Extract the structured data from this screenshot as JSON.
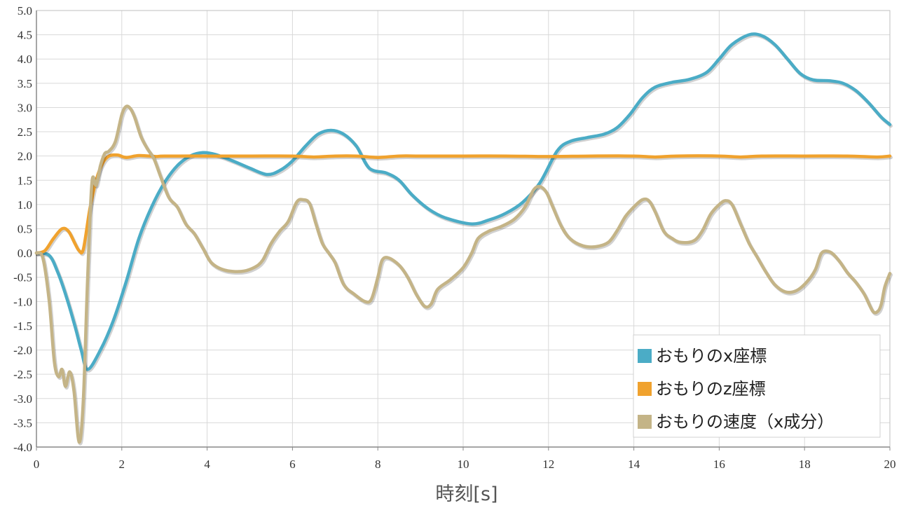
{
  "chart_data": {
    "type": "line",
    "xlabel": "時刻[s]",
    "ylabel": "",
    "xlim": [
      0,
      20
    ],
    "ylim": [
      -4.0,
      5.0
    ],
    "x_ticks": [
      "0",
      "2",
      "4",
      "6",
      "8",
      "10",
      "12",
      "14",
      "16",
      "18",
      "20"
    ],
    "y_ticks": [
      "5.0",
      "4.5",
      "4.0",
      "3.5",
      "3.0",
      "2.5",
      "2.0",
      "1.5",
      "1.0",
      "0.5",
      "0.0",
      "-0.5",
      "-1.0",
      "-1.5",
      "-2.0",
      "-2.5",
      "-3.0",
      "-3.5",
      "-4.0"
    ],
    "grid": true,
    "legend_position": "bottom-right",
    "series": [
      {
        "name": "おもりのx座標",
        "color": "#4bacc6",
        "points": [
          [
            0,
            0
          ],
          [
            0.3,
            -0.05
          ],
          [
            0.5,
            -0.4
          ],
          [
            0.7,
            -0.9
          ],
          [
            0.9,
            -1.5
          ],
          [
            1.05,
            -2.0
          ],
          [
            1.2,
            -2.4
          ],
          [
            1.5,
            -2.0
          ],
          [
            1.8,
            -1.4
          ],
          [
            2.1,
            -0.6
          ],
          [
            2.4,
            0.3
          ],
          [
            2.7,
            0.95
          ],
          [
            3.0,
            1.45
          ],
          [
            3.3,
            1.8
          ],
          [
            3.6,
            2.0
          ],
          [
            3.9,
            2.07
          ],
          [
            4.2,
            2.03
          ],
          [
            4.6,
            1.9
          ],
          [
            5.0,
            1.75
          ],
          [
            5.4,
            1.62
          ],
          [
            5.7,
            1.7
          ],
          [
            6.0,
            1.9
          ],
          [
            6.3,
            2.2
          ],
          [
            6.6,
            2.45
          ],
          [
            6.9,
            2.53
          ],
          [
            7.2,
            2.45
          ],
          [
            7.5,
            2.2
          ],
          [
            7.8,
            1.75
          ],
          [
            8.2,
            1.65
          ],
          [
            8.5,
            1.5
          ],
          [
            8.8,
            1.2
          ],
          [
            9.2,
            0.9
          ],
          [
            9.6,
            0.72
          ],
          [
            10.2,
            0.6
          ],
          [
            10.6,
            0.68
          ],
          [
            11.0,
            0.82
          ],
          [
            11.4,
            1.05
          ],
          [
            11.8,
            1.45
          ],
          [
            12.2,
            2.1
          ],
          [
            12.5,
            2.3
          ],
          [
            12.9,
            2.38
          ],
          [
            13.3,
            2.45
          ],
          [
            13.6,
            2.58
          ],
          [
            13.9,
            2.85
          ],
          [
            14.2,
            3.2
          ],
          [
            14.5,
            3.42
          ],
          [
            14.9,
            3.52
          ],
          [
            15.3,
            3.58
          ],
          [
            15.7,
            3.72
          ],
          [
            16.0,
            4.0
          ],
          [
            16.3,
            4.3
          ],
          [
            16.7,
            4.5
          ],
          [
            17.0,
            4.48
          ],
          [
            17.3,
            4.3
          ],
          [
            17.6,
            4.0
          ],
          [
            17.9,
            3.7
          ],
          [
            18.2,
            3.57
          ],
          [
            18.6,
            3.55
          ],
          [
            18.9,
            3.5
          ],
          [
            19.2,
            3.35
          ],
          [
            19.5,
            3.1
          ],
          [
            19.8,
            2.8
          ],
          [
            20.0,
            2.65
          ]
        ]
      },
      {
        "name": "おもりのz座標",
        "color": "#f0a22e",
        "points": [
          [
            0,
            0
          ],
          [
            0.2,
            0.05
          ],
          [
            0.4,
            0.3
          ],
          [
            0.6,
            0.5
          ],
          [
            0.75,
            0.45
          ],
          [
            0.9,
            0.2
          ],
          [
            1.0,
            0.05
          ],
          [
            1.1,
            0.08
          ],
          [
            1.25,
            0.9
          ],
          [
            1.4,
            1.5
          ],
          [
            1.55,
            1.85
          ],
          [
            1.7,
            2.0
          ],
          [
            1.9,
            2.02
          ],
          [
            2.1,
            1.97
          ],
          [
            2.4,
            2.01
          ],
          [
            2.8,
            1.99
          ],
          [
            3.0,
            2.0
          ],
          [
            4.0,
            2.0
          ],
          [
            5.0,
            2.0
          ],
          [
            6.0,
            2.0
          ],
          [
            6.5,
            1.98
          ],
          [
            7.0,
            2.0
          ],
          [
            7.5,
            2.0
          ],
          [
            8.0,
            1.97
          ],
          [
            8.5,
            2.0
          ],
          [
            9.0,
            2.0
          ],
          [
            10.0,
            2.0
          ],
          [
            11.0,
            2.0
          ],
          [
            12.0,
            1.99
          ],
          [
            13.0,
            2.0
          ],
          [
            14.0,
            2.0
          ],
          [
            14.5,
            1.98
          ],
          [
            15.0,
            2.0
          ],
          [
            16.0,
            2.0
          ],
          [
            16.5,
            1.98
          ],
          [
            17.0,
            2.0
          ],
          [
            18.0,
            2.0
          ],
          [
            19.0,
            2.0
          ],
          [
            19.7,
            1.98
          ],
          [
            20.0,
            2.0
          ]
        ]
      },
      {
        "name": "おもりの速度（x成分）",
        "color": "#c4b487",
        "points": [
          [
            0,
            0
          ],
          [
            0.15,
            -0.1
          ],
          [
            0.3,
            -1.0
          ],
          [
            0.42,
            -2.25
          ],
          [
            0.52,
            -2.55
          ],
          [
            0.6,
            -2.4
          ],
          [
            0.68,
            -2.75
          ],
          [
            0.78,
            -2.45
          ],
          [
            0.88,
            -2.85
          ],
          [
            1.0,
            -3.9
          ],
          [
            1.1,
            -3.0
          ],
          [
            1.2,
            -0.5
          ],
          [
            1.3,
            1.45
          ],
          [
            1.4,
            1.4
          ],
          [
            1.5,
            1.8
          ],
          [
            1.6,
            2.05
          ],
          [
            1.7,
            2.1
          ],
          [
            1.85,
            2.3
          ],
          [
            2.0,
            2.85
          ],
          [
            2.1,
            3.02
          ],
          [
            2.2,
            2.98
          ],
          [
            2.3,
            2.8
          ],
          [
            2.45,
            2.4
          ],
          [
            2.6,
            2.15
          ],
          [
            2.75,
            1.95
          ],
          [
            2.9,
            1.6
          ],
          [
            3.1,
            1.15
          ],
          [
            3.3,
            0.95
          ],
          [
            3.5,
            0.6
          ],
          [
            3.7,
            0.4
          ],
          [
            3.9,
            0.1
          ],
          [
            4.1,
            -0.2
          ],
          [
            4.4,
            -0.35
          ],
          [
            4.8,
            -0.38
          ],
          [
            5.1,
            -0.3
          ],
          [
            5.3,
            -0.15
          ],
          [
            5.5,
            0.2
          ],
          [
            5.7,
            0.45
          ],
          [
            5.9,
            0.65
          ],
          [
            6.1,
            1.05
          ],
          [
            6.25,
            1.1
          ],
          [
            6.4,
            1.02
          ],
          [
            6.55,
            0.6
          ],
          [
            6.7,
            0.2
          ],
          [
            6.85,
            0.0
          ],
          [
            7.0,
            -0.2
          ],
          [
            7.2,
            -0.65
          ],
          [
            7.45,
            -0.85
          ],
          [
            7.7,
            -1.0
          ],
          [
            7.85,
            -0.95
          ],
          [
            8.0,
            -0.5
          ],
          [
            8.1,
            -0.15
          ],
          [
            8.25,
            -0.1
          ],
          [
            8.5,
            -0.25
          ],
          [
            8.7,
            -0.5
          ],
          [
            8.9,
            -0.85
          ],
          [
            9.1,
            -1.1
          ],
          [
            9.25,
            -1.05
          ],
          [
            9.4,
            -0.75
          ],
          [
            9.7,
            -0.55
          ],
          [
            10.0,
            -0.3
          ],
          [
            10.2,
            0.0
          ],
          [
            10.35,
            0.3
          ],
          [
            10.6,
            0.45
          ],
          [
            10.9,
            0.55
          ],
          [
            11.2,
            0.7
          ],
          [
            11.45,
            0.95
          ],
          [
            11.65,
            1.3
          ],
          [
            11.8,
            1.37
          ],
          [
            11.95,
            1.25
          ],
          [
            12.1,
            0.95
          ],
          [
            12.3,
            0.55
          ],
          [
            12.5,
            0.3
          ],
          [
            12.8,
            0.15
          ],
          [
            13.1,
            0.13
          ],
          [
            13.4,
            0.22
          ],
          [
            13.6,
            0.45
          ],
          [
            13.8,
            0.75
          ],
          [
            14.0,
            0.95
          ],
          [
            14.2,
            1.1
          ],
          [
            14.35,
            1.08
          ],
          [
            14.5,
            0.85
          ],
          [
            14.7,
            0.45
          ],
          [
            14.9,
            0.3
          ],
          [
            15.1,
            0.22
          ],
          [
            15.4,
            0.25
          ],
          [
            15.6,
            0.45
          ],
          [
            15.8,
            0.8
          ],
          [
            16.0,
            1.0
          ],
          [
            16.15,
            1.08
          ],
          [
            16.3,
            1.0
          ],
          [
            16.5,
            0.6
          ],
          [
            16.7,
            0.2
          ],
          [
            16.9,
            -0.1
          ],
          [
            17.1,
            -0.4
          ],
          [
            17.3,
            -0.65
          ],
          [
            17.55,
            -0.8
          ],
          [
            17.8,
            -0.78
          ],
          [
            18.05,
            -0.6
          ],
          [
            18.25,
            -0.35
          ],
          [
            18.4,
            0.0
          ],
          [
            18.6,
            0.02
          ],
          [
            18.8,
            -0.15
          ],
          [
            19.0,
            -0.4
          ],
          [
            19.2,
            -0.6
          ],
          [
            19.4,
            -0.85
          ],
          [
            19.6,
            -1.2
          ],
          [
            19.72,
            -1.2
          ],
          [
            19.8,
            -1.05
          ],
          [
            19.88,
            -0.7
          ],
          [
            20.0,
            -0.42
          ]
        ]
      }
    ]
  }
}
